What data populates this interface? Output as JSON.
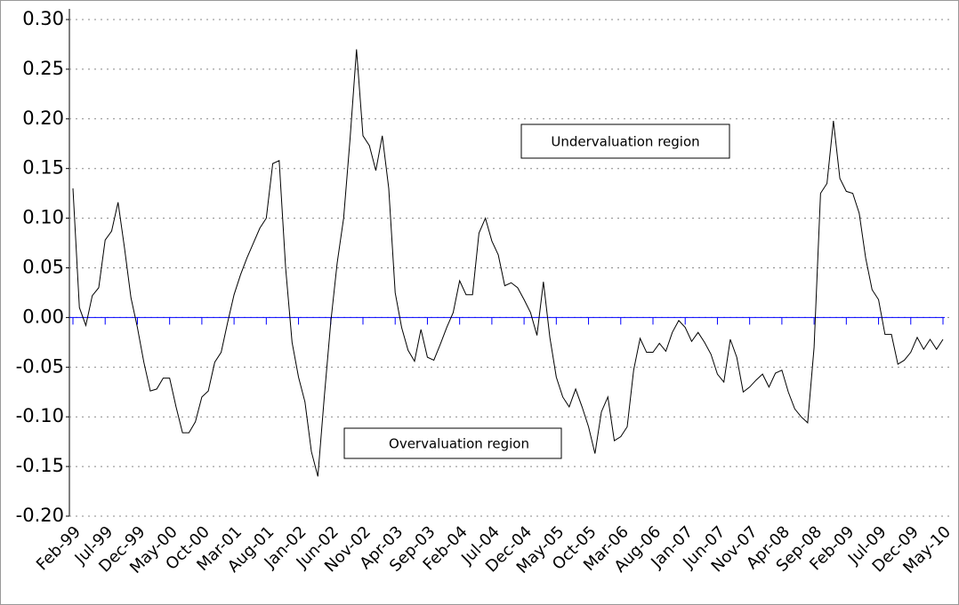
{
  "chart_data": {
    "type": "line",
    "categories": [
      "Feb-99",
      null,
      null,
      null,
      null,
      "Jul-99",
      null,
      null,
      null,
      null,
      "Dec-99",
      null,
      null,
      null,
      null,
      "May-00",
      null,
      null,
      null,
      null,
      "Oct-00",
      null,
      null,
      null,
      null,
      "Mar-01",
      null,
      null,
      null,
      null,
      "Aug-01",
      null,
      null,
      null,
      null,
      "Jan-02",
      null,
      null,
      null,
      null,
      "Jun-02",
      null,
      null,
      null,
      null,
      "Nov-02",
      null,
      null,
      null,
      null,
      "Apr-03",
      null,
      null,
      null,
      null,
      "Sep-03",
      null,
      null,
      null,
      null,
      "Feb-04",
      null,
      null,
      null,
      null,
      "Jul-04",
      null,
      null,
      null,
      null,
      "Dec-04",
      null,
      null,
      null,
      null,
      "May-05",
      null,
      null,
      null,
      null,
      "Oct-05",
      null,
      null,
      null,
      null,
      "Mar-06",
      null,
      null,
      null,
      null,
      "Aug-06",
      null,
      null,
      null,
      null,
      "Jan-07",
      null,
      null,
      null,
      null,
      "Jun-07",
      null,
      null,
      null,
      null,
      "Nov-07",
      null,
      null,
      null,
      null,
      "Apr-08",
      null,
      null,
      null,
      null,
      "Sep-08",
      null,
      null,
      null,
      null,
      "Feb-09",
      null,
      null,
      null,
      null,
      "Jul-09",
      null,
      null,
      null,
      null,
      "Dec-09",
      null,
      null,
      null,
      null,
      "May-10"
    ],
    "values": [
      0.13,
      0.01,
      -0.008,
      0.022,
      0.03,
      0.078,
      0.087,
      0.116,
      0.07,
      0.02,
      -0.01,
      -0.045,
      -0.074,
      -0.072,
      -0.061,
      -0.061,
      -0.09,
      -0.116,
      -0.116,
      -0.105,
      -0.08,
      -0.074,
      -0.045,
      -0.035,
      -0.005,
      0.023,
      0.043,
      0.06,
      0.075,
      0.09,
      0.1,
      0.155,
      0.158,
      0.05,
      -0.025,
      -0.06,
      -0.085,
      -0.135,
      -0.16,
      -0.08,
      -0.005,
      0.055,
      0.1,
      0.18,
      0.27,
      0.183,
      0.173,
      0.148,
      0.183,
      0.13,
      0.025,
      -0.01,
      -0.033,
      -0.044,
      -0.012,
      -0.04,
      -0.043,
      -0.027,
      -0.01,
      0.005,
      0.037,
      0.023,
      0.023,
      0.085,
      0.1,
      0.077,
      0.063,
      0.032,
      0.035,
      0.03,
      0.018,
      0.005,
      -0.018,
      0.036,
      -0.02,
      -0.06,
      -0.08,
      -0.09,
      -0.072,
      -0.09,
      -0.11,
      -0.137,
      -0.095,
      -0.08,
      -0.124,
      -0.12,
      -0.11,
      -0.053,
      -0.021,
      -0.035,
      -0.035,
      -0.026,
      -0.034,
      -0.015,
      -0.003,
      -0.01,
      -0.024,
      -0.015,
      -0.025,
      -0.037,
      -0.057,
      -0.065,
      -0.022,
      -0.04,
      -0.075,
      -0.07,
      -0.063,
      -0.057,
      -0.07,
      -0.056,
      -0.053,
      -0.075,
      -0.092,
      -0.1,
      -0.106,
      -0.03,
      0.125,
      0.135,
      0.198,
      0.14,
      0.127,
      0.125,
      0.105,
      0.06,
      0.028,
      0.018,
      -0.017,
      -0.017,
      -0.047,
      -0.043,
      -0.035,
      -0.02,
      -0.032,
      -0.022,
      -0.032,
      -0.022
    ],
    "color": "#000000",
    "zero_line_color": "#0000ff",
    "ylim": [
      -0.2,
      0.3
    ],
    "yticks": [
      {
        "value": -0.2,
        "label": "-0.20"
      },
      {
        "value": -0.15,
        "label": "-0.15"
      },
      {
        "value": -0.1,
        "label": "-0.10"
      },
      {
        "value": -0.05,
        "label": "-0.05"
      },
      {
        "value": 0,
        "label": "0.00"
      },
      {
        "value": 0.05,
        "label": "0.05"
      },
      {
        "value": 0.1,
        "label": "0.10"
      },
      {
        "value": 0.15,
        "label": "0.15"
      },
      {
        "value": 0.2,
        "label": "0.20"
      },
      {
        "value": 0.25,
        "label": "0.25"
      },
      {
        "value": 0.3,
        "label": "0.30"
      }
    ],
    "grid": true,
    "annotations": [
      "Undervaluation region",
      "Overvaluation region"
    ]
  }
}
